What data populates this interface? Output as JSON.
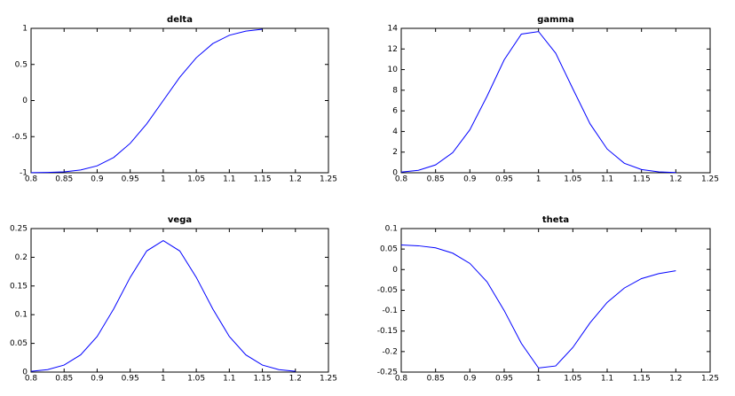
{
  "chart_data": [
    {
      "type": "line",
      "title": "delta",
      "color": "#0000ff",
      "x": [
        0.8,
        0.825,
        0.85,
        0.875,
        0.9,
        0.925,
        0.95,
        0.975,
        1.0,
        1.025,
        1.05,
        1.075,
        1.1,
        1.125,
        1.15
      ],
      "values": [
        -0.999,
        -0.996,
        -0.988,
        -0.962,
        -0.904,
        -0.789,
        -0.593,
        -0.323,
        0,
        0.323,
        0.593,
        0.789,
        0.904,
        0.962,
        0.988
      ],
      "xlim": [
        0.8,
        1.25
      ],
      "xticks": [
        0.8,
        0.85,
        0.9,
        0.95,
        1,
        1.05,
        1.1,
        1.15,
        1.2,
        1.25
      ],
      "ylim": [
        -1,
        1
      ],
      "yticks": [
        -1,
        -0.5,
        0,
        0.5,
        1
      ]
    },
    {
      "type": "line",
      "title": "gamma",
      "color": "#0000ff",
      "x": [
        0.8,
        0.825,
        0.85,
        0.875,
        0.9,
        0.925,
        0.95,
        0.975,
        1.0,
        1.025,
        1.05,
        1.075,
        1.1,
        1.125,
        1.15,
        1.175,
        1.2
      ],
      "values": [
        0.065,
        0.24,
        0.76,
        1.95,
        4.17,
        7.42,
        10.95,
        13.44,
        13.69,
        11.59,
        8.14,
        4.75,
        2.3,
        0.92,
        0.31,
        0.09,
        0.02
      ],
      "xlim": [
        0.8,
        1.25
      ],
      "xticks": [
        0.8,
        0.85,
        0.9,
        0.95,
        1,
        1.05,
        1.1,
        1.15,
        1.2,
        1.25
      ],
      "ylim": [
        0,
        14
      ],
      "yticks": [
        0,
        2,
        4,
        6,
        8,
        10,
        12,
        14
      ]
    },
    {
      "type": "line",
      "title": "vega",
      "color": "#0000ff",
      "x": [
        0.8,
        0.825,
        0.85,
        0.875,
        0.9,
        0.925,
        0.95,
        0.975,
        1.0,
        1.025,
        1.05,
        1.075,
        1.1,
        1.125,
        1.15,
        1.175,
        1.2
      ],
      "values": [
        0.0013,
        0.0043,
        0.0122,
        0.03,
        0.062,
        0.11,
        0.165,
        0.211,
        0.229,
        0.211,
        0.165,
        0.11,
        0.062,
        0.03,
        0.0122,
        0.0043,
        0.0013
      ],
      "xlim": [
        0.8,
        1.25
      ],
      "xticks": [
        0.8,
        0.85,
        0.9,
        0.95,
        1,
        1.05,
        1.1,
        1.15,
        1.2,
        1.25
      ],
      "ylim": [
        0,
        0.25
      ],
      "yticks": [
        0,
        0.05,
        0.1,
        0.15,
        0.2,
        0.25
      ]
    },
    {
      "type": "line",
      "title": "theta",
      "color": "#0000ff",
      "x": [
        0.8,
        0.825,
        0.85,
        0.875,
        0.9,
        0.925,
        0.95,
        0.975,
        1.0,
        1.025,
        1.05,
        1.075,
        1.1,
        1.125,
        1.15,
        1.175,
        1.2
      ],
      "values": [
        0.06,
        0.058,
        0.053,
        0.04,
        0.015,
        -0.03,
        -0.1,
        -0.18,
        -0.24,
        -0.235,
        -0.19,
        -0.13,
        -0.08,
        -0.045,
        -0.022,
        -0.01,
        -0.003
      ],
      "xlim": [
        0.8,
        1.25
      ],
      "xticks": [
        0.8,
        0.85,
        0.9,
        0.95,
        1,
        1.05,
        1.1,
        1.15,
        1.2,
        1.25
      ],
      "ylim": [
        -0.25,
        0.1
      ],
      "yticks": [
        -0.25,
        -0.2,
        -0.15,
        -0.1,
        -0.05,
        0,
        0.05,
        0.1
      ]
    }
  ]
}
